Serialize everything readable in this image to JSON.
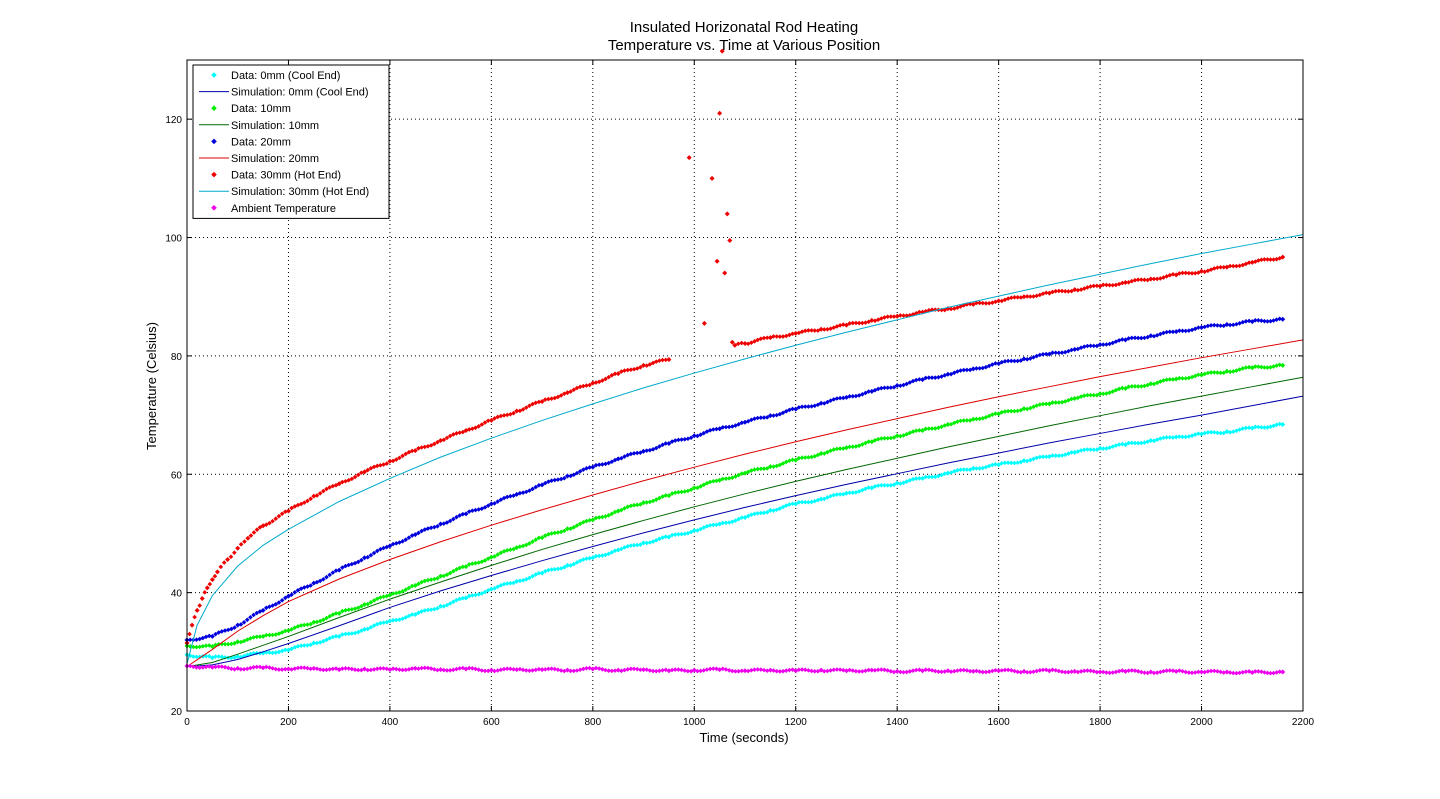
{
  "chart_data": {
    "type": "scatter",
    "title": [
      "Insulated Horizonatal Rod Heating",
      "Temperature vs. Time at Various Position"
    ],
    "xlabel": "Time (seconds)",
    "ylabel": "Temperature (Celsius)",
    "xlim": [
      0,
      2200
    ],
    "ylim": [
      20,
      130
    ],
    "xticks": [
      0,
      200,
      400,
      600,
      800,
      1000,
      1200,
      1400,
      1600,
      1800,
      2000,
      2200
    ],
    "yticks": [
      20,
      40,
      60,
      80,
      100,
      120
    ],
    "grid": true,
    "legend_position": "top-left",
    "series": [
      {
        "name": "Data: 0mm (Cool End)",
        "kind": "markers",
        "color": "#00ffff",
        "x": [
          0,
          50,
          100,
          150,
          200,
          250,
          300,
          350,
          400,
          450,
          500,
          550,
          600,
          650,
          700,
          750,
          800,
          850,
          900,
          950,
          1000,
          1050,
          1100,
          1150,
          1200,
          1250,
          1300,
          1350,
          1400,
          1450,
          1500,
          1550,
          1600,
          1650,
          1700,
          1750,
          1800,
          1850,
          1900,
          1950,
          2000,
          2050,
          2100,
          2160
        ],
        "y": [
          29.5,
          29.0,
          29.2,
          29.8,
          30.3,
          31.5,
          32.6,
          33.8,
          35.2,
          36.3,
          37.7,
          39.1,
          40.6,
          41.9,
          43.3,
          44.6,
          45.9,
          47.2,
          48.4,
          49.4,
          50.5,
          51.6,
          52.7,
          53.9,
          55.0,
          55.8,
          56.8,
          57.7,
          58.5,
          59.3,
          60.2,
          61.0,
          61.6,
          62.3,
          63.0,
          63.7,
          64.4,
          65.0,
          65.7,
          66.3,
          66.8,
          67.2,
          67.8,
          68.4
        ]
      },
      {
        "name": "Simulation: 0mm (Cool End)",
        "kind": "line",
        "color": "#0000aa",
        "x": [
          0,
          50,
          100,
          150,
          200,
          300,
          400,
          500,
          600,
          700,
          800,
          900,
          1000,
          1100,
          1200,
          1300,
          1400,
          1500,
          1600,
          1700,
          1800,
          1900,
          2000,
          2100,
          2200
        ],
        "y": [
          27.5,
          27.8,
          28.7,
          30.0,
          31.4,
          34.4,
          37.5,
          40.3,
          42.9,
          45.4,
          47.8,
          50.1,
          52.3,
          54.4,
          56.4,
          58.3,
          60.1,
          61.9,
          63.6,
          65.3,
          66.9,
          68.5,
          70.0,
          71.6,
          73.2
        ]
      },
      {
        "name": "Data: 10mm",
        "kind": "markers",
        "color": "#00ee00",
        "x": [
          0,
          50,
          100,
          150,
          200,
          250,
          300,
          350,
          400,
          450,
          500,
          550,
          600,
          650,
          700,
          750,
          800,
          850,
          900,
          950,
          1000,
          1050,
          1100,
          1150,
          1200,
          1250,
          1300,
          1350,
          1400,
          1450,
          1500,
          1550,
          1600,
          1650,
          1700,
          1750,
          1800,
          1850,
          1900,
          1950,
          2000,
          2050,
          2100,
          2160
        ],
        "y": [
          31.0,
          30.9,
          31.7,
          32.6,
          33.6,
          35.0,
          36.5,
          38.0,
          39.6,
          41.2,
          42.8,
          44.4,
          46.0,
          47.6,
          49.3,
          50.8,
          52.3,
          53.8,
          55.2,
          56.4,
          57.7,
          59.0,
          60.2,
          61.3,
          62.4,
          63.5,
          64.5,
          65.5,
          66.5,
          67.4,
          68.4,
          69.3,
          70.2,
          71.1,
          71.9,
          72.8,
          73.6,
          74.5,
          75.3,
          76.1,
          76.8,
          77.4,
          78.0,
          78.4
        ]
      },
      {
        "name": "Simulation: 10mm",
        "kind": "line",
        "color": "#006600",
        "x": [
          0,
          50,
          100,
          150,
          200,
          300,
          400,
          500,
          600,
          700,
          800,
          900,
          1000,
          1100,
          1200,
          1300,
          1400,
          1500,
          1600,
          1700,
          1800,
          1900,
          2000,
          2100,
          2200
        ],
        "y": [
          27.5,
          28.2,
          29.6,
          31.1,
          32.6,
          35.8,
          38.9,
          41.8,
          44.6,
          47.3,
          49.8,
          52.2,
          54.5,
          56.7,
          58.8,
          60.8,
          62.7,
          64.6,
          66.4,
          68.2,
          69.9,
          71.6,
          73.2,
          74.8,
          76.4
        ]
      },
      {
        "name": "Data: 20mm",
        "kind": "markers",
        "color": "#0000dd",
        "x": [
          0,
          50,
          100,
          150,
          200,
          250,
          300,
          350,
          400,
          450,
          500,
          550,
          600,
          650,
          700,
          750,
          800,
          850,
          900,
          950,
          1000,
          1050,
          1100,
          1150,
          1200,
          1250,
          1300,
          1350,
          1400,
          1450,
          1500,
          1550,
          1600,
          1650,
          1700,
          1750,
          1800,
          1850,
          1900,
          1950,
          2000,
          2050,
          2100,
          2160
        ],
        "y": [
          32.0,
          32.6,
          34.5,
          37.0,
          39.4,
          41.6,
          43.8,
          45.9,
          47.9,
          49.8,
          51.6,
          53.3,
          55.0,
          56.6,
          58.2,
          59.7,
          61.2,
          62.6,
          63.9,
          65.2,
          66.5,
          67.7,
          68.8,
          69.9,
          71.0,
          72.0,
          73.0,
          74.0,
          75.0,
          76.0,
          76.9,
          77.8,
          78.7,
          79.5,
          80.3,
          81.1,
          81.9,
          82.7,
          83.4,
          84.1,
          84.8,
          85.3,
          85.8,
          86.2
        ]
      },
      {
        "name": "Simulation: 20mm",
        "kind": "line",
        "color": "#dd0000",
        "x": [
          0,
          50,
          100,
          150,
          200,
          300,
          400,
          500,
          600,
          700,
          800,
          900,
          1000,
          1100,
          1200,
          1300,
          1400,
          1500,
          1600,
          1700,
          1800,
          1900,
          2000,
          2100,
          2200
        ],
        "y": [
          27.5,
          30.4,
          33.5,
          36.1,
          38.5,
          42.3,
          45.6,
          48.6,
          51.4,
          54.0,
          56.5,
          58.9,
          61.2,
          63.4,
          65.5,
          67.5,
          69.4,
          71.3,
          73.1,
          74.8,
          76.5,
          78.1,
          79.7,
          81.2,
          82.7
        ]
      },
      {
        "name": "Data: 30mm (Hot End)",
        "kind": "markers",
        "color": "#ee0000",
        "x": [
          0,
          10,
          20,
          30,
          40,
          50,
          60,
          80,
          100,
          120,
          150,
          200,
          250,
          300,
          350,
          400,
          450,
          500,
          550,
          600,
          650,
          700,
          750,
          800,
          850,
          900,
          950,
          990,
          1020,
          1035,
          1045,
          1050,
          1055,
          1060,
          1065,
          1070,
          1075,
          1080,
          1100,
          1150,
          1200,
          1250,
          1300,
          1350,
          1400,
          1450,
          1500,
          1550,
          1600,
          1650,
          1700,
          1750,
          1800,
          1850,
          1900,
          1950,
          2000,
          2050,
          2100,
          2160
        ],
        "y": [
          31.5,
          34.5,
          37.0,
          39.0,
          40.8,
          42.2,
          43.5,
          45.6,
          47.5,
          49.2,
          51.3,
          53.8,
          56.3,
          58.4,
          60.4,
          62.2,
          64.0,
          65.7,
          67.4,
          69.1,
          70.7,
          72.3,
          73.8,
          75.4,
          77.0,
          78.4,
          79.4,
          113.5,
          85.5,
          110.0,
          96.0,
          121.0,
          131.5,
          94.0,
          104.0,
          99.5,
          82.3,
          81.8,
          82.1,
          83.1,
          83.8,
          84.5,
          85.2,
          86.0,
          86.7,
          87.4,
          88.0,
          88.7,
          89.3,
          90.0,
          90.6,
          91.2,
          91.8,
          92.4,
          93.0,
          93.7,
          94.3,
          95.0,
          95.8,
          96.7
        ]
      },
      {
        "name": "Simulation: 30mm (Hot End)",
        "kind": "line",
        "color": "#00aacc",
        "x": [
          0,
          20,
          50,
          100,
          150,
          200,
          300,
          400,
          500,
          600,
          700,
          800,
          900,
          1000,
          1100,
          1200,
          1300,
          1400,
          1500,
          1600,
          1700,
          1800,
          1900,
          2000,
          2100,
          2200
        ],
        "y": [
          28.0,
          34.5,
          39.5,
          44.5,
          48.0,
          50.7,
          55.4,
          59.3,
          62.9,
          66.1,
          69.1,
          71.9,
          74.6,
          77.1,
          79.5,
          81.8,
          84.0,
          86.1,
          88.2,
          90.1,
          92.0,
          93.8,
          95.6,
          97.3,
          98.9,
          100.5
        ]
      },
      {
        "name": "Ambient Temperature",
        "kind": "markers",
        "color": "#ee00ee",
        "x": [
          0,
          50,
          100,
          150,
          200,
          250,
          300,
          350,
          400,
          450,
          500,
          550,
          600,
          650,
          700,
          750,
          800,
          850,
          900,
          950,
          1000,
          1050,
          1100,
          1150,
          1200,
          1250,
          1300,
          1350,
          1400,
          1450,
          1500,
          1550,
          1600,
          1650,
          1700,
          1750,
          1800,
          1850,
          1900,
          1950,
          2000,
          2050,
          2100,
          2160
        ],
        "y": [
          27.6,
          27.4,
          27.2,
          27.3,
          27.1,
          27.2,
          27.0,
          27.1,
          27.0,
          27.2,
          27.0,
          27.1,
          26.9,
          27.0,
          27.0,
          26.9,
          27.1,
          26.9,
          27.0,
          26.8,
          26.9,
          27.0,
          26.8,
          26.9,
          26.8,
          26.9,
          26.8,
          26.9,
          26.7,
          26.8,
          26.8,
          26.7,
          26.8,
          26.7,
          26.8,
          26.7,
          26.6,
          26.7,
          26.6,
          26.7,
          26.6,
          26.6,
          26.5,
          26.6
        ]
      }
    ]
  }
}
